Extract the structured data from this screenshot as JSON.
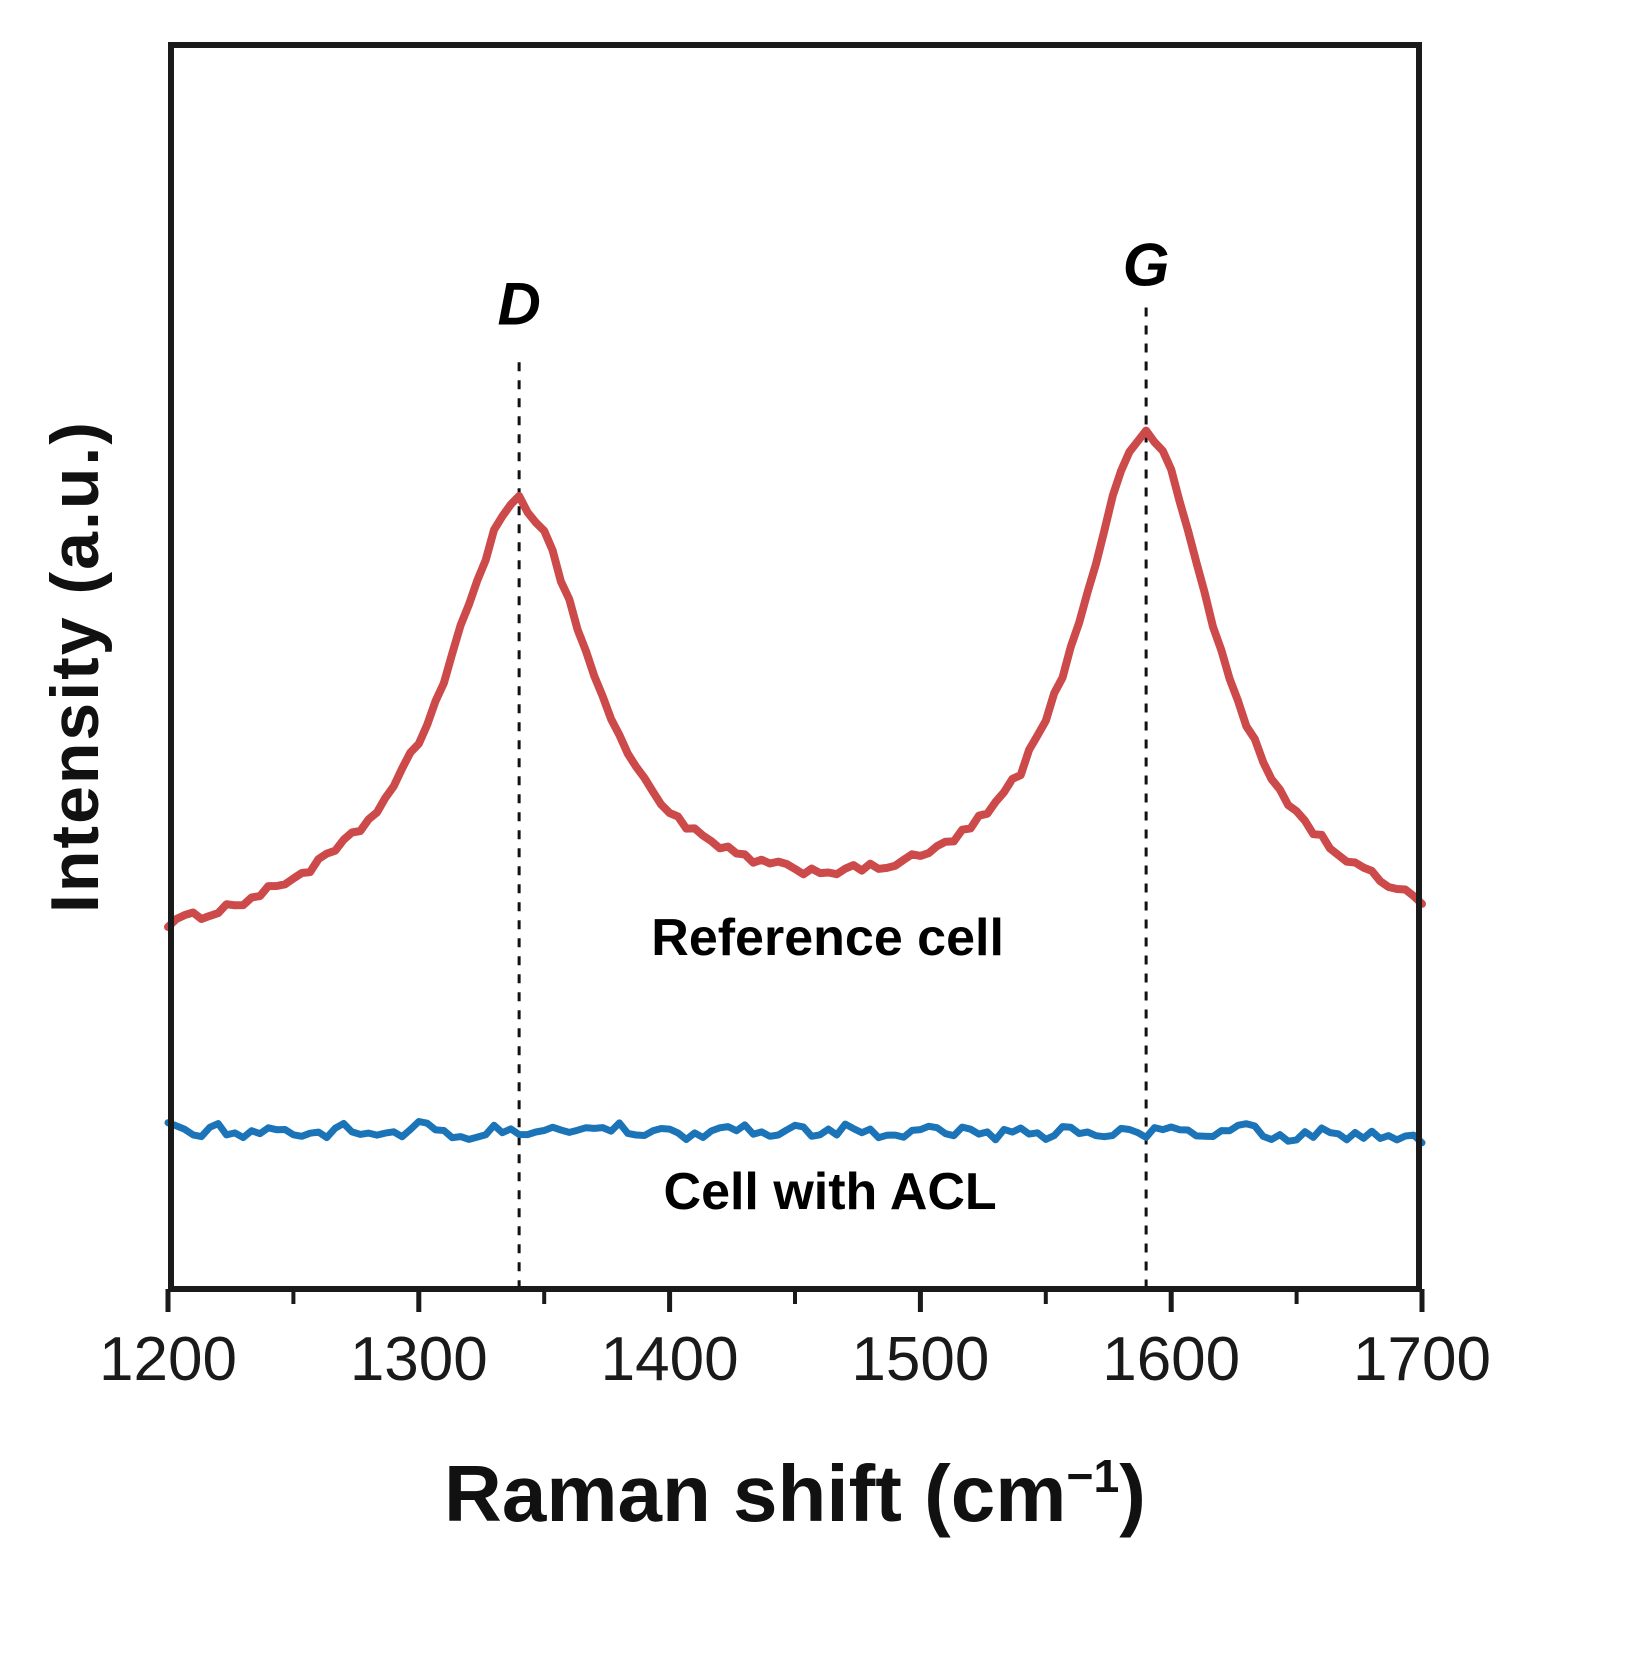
{
  "figure": {
    "background": "#ffffff"
  },
  "chart_data": {
    "type": "line",
    "title": "",
    "xlabel": {
      "prefix": "Raman shift (cm",
      "superscript": "−1",
      "suffix": ")"
    },
    "ylabel": "Intensity (a.u.)",
    "xlim": [
      1200,
      1700
    ],
    "ylim": [
      0,
      1.05
    ],
    "x_ticks": [
      1200,
      1300,
      1400,
      1500,
      1600,
      1700
    ],
    "x_minor_ticks": [
      1250,
      1350,
      1450,
      1550,
      1650
    ],
    "grid": false,
    "legend": "inline-labels",
    "frame_color": "#1a1a1a",
    "annotation_color": "#111111",
    "series": [
      {
        "name": "Reference cell",
        "color": "#cd4a4a",
        "width": 8,
        "noise": 0.004,
        "x_start": 1200,
        "x_step": 10,
        "values": [
          0.31,
          0.315,
          0.321,
          0.328,
          0.337,
          0.348,
          0.36,
          0.376,
          0.396,
          0.424,
          0.462,
          0.513,
          0.578,
          0.639,
          0.667,
          0.641,
          0.58,
          0.517,
          0.466,
          0.429,
          0.404,
          0.386,
          0.373,
          0.365,
          0.359,
          0.355,
          0.354,
          0.354,
          0.356,
          0.36,
          0.366,
          0.376,
          0.39,
          0.409,
          0.438,
          0.48,
          0.539,
          0.615,
          0.692,
          0.727,
          0.691,
          0.613,
          0.536,
          0.475,
          0.432,
          0.402,
          0.381,
          0.363,
          0.35,
          0.34,
          0.33
        ],
        "label_pos": {
          "x": 1463,
          "y": 0.297
        }
      },
      {
        "name": "Cell with ACL",
        "color": "#1b74b8",
        "width": 7,
        "noise": 0.0045,
        "x_start": 1200,
        "x_step": 10,
        "values": [
          0.138,
          0.133,
          0.137,
          0.131,
          0.139,
          0.134,
          0.13,
          0.138,
          0.135,
          0.132,
          0.14,
          0.134,
          0.129,
          0.137,
          0.133,
          0.138,
          0.131,
          0.136,
          0.14,
          0.133,
          0.137,
          0.13,
          0.135,
          0.139,
          0.132,
          0.136,
          0.131,
          0.138,
          0.134,
          0.129,
          0.137,
          0.133,
          0.139,
          0.131,
          0.136,
          0.132,
          0.138,
          0.13,
          0.135,
          0.133,
          0.137,
          0.131,
          0.134,
          0.138,
          0.132,
          0.129,
          0.135,
          0.131,
          0.133,
          0.13,
          0.128
        ],
        "label_pos": {
          "x": 1464,
          "y": 0.084
        }
      }
    ],
    "annotations": [
      {
        "label": "D",
        "x": 1340,
        "line_top": 0.781,
        "label_y": 0.83
      },
      {
        "label": "G",
        "x": 1590,
        "line_top": 0.827,
        "label_y": 0.863
      }
    ]
  }
}
